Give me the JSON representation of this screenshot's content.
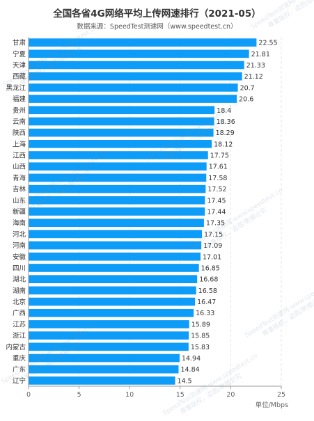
{
  "title": "全国各省4G网络平均上传网速排行（2021-05）",
  "subtitle": "数据来源：SpeedTest测速网（www.speedtest.cn）",
  "watermark": {
    "line1": "SpeedTest测速网-www.speedtest.cn",
    "line2": "尊重版权，盗图/数据必究"
  },
  "colors": {
    "bar": "#0d9cf7",
    "axis": "#999999",
    "grid": "#e6e6e6",
    "text": "#333333"
  },
  "chart_data": {
    "type": "bar",
    "orientation": "horizontal",
    "categories": [
      "甘肃",
      "宁夏",
      "天津",
      "西藏",
      "黑龙江",
      "福建",
      "贵州",
      "云南",
      "陕西",
      "上海",
      "江西",
      "山西",
      "青海",
      "吉林",
      "山东",
      "新疆",
      "海南",
      "河北",
      "河南",
      "安徽",
      "四川",
      "湖北",
      "湖南",
      "北京",
      "广西",
      "江苏",
      "浙江",
      "内蒙古",
      "重庆",
      "广东",
      "辽宁"
    ],
    "values": [
      22.55,
      21.81,
      21.33,
      21.12,
      20.7,
      20.6,
      18.4,
      18.36,
      18.29,
      18.12,
      17.75,
      17.61,
      17.58,
      17.52,
      17.45,
      17.44,
      17.35,
      17.15,
      17.09,
      17.01,
      16.85,
      16.68,
      16.58,
      16.47,
      16.33,
      15.89,
      15.85,
      15.83,
      14.94,
      14.84,
      14.5
    ],
    "value_labels": [
      "22.55",
      "21.81",
      "21.33",
      "21.12",
      "20.7",
      "20.6",
      "18.4",
      "18.36",
      "18.29",
      "18.12",
      "17.75",
      "17.61",
      "17.58",
      "17.52",
      "17.45",
      "17.44",
      "17.35",
      "17.15",
      "17.09",
      "17.01",
      "16.85",
      "16.68",
      "16.58",
      "16.47",
      "16.33",
      "15.89",
      "15.85",
      "15.83",
      "14.94",
      "14.84",
      "14.5"
    ],
    "xlim": [
      0,
      25
    ],
    "xticks": [
      0,
      5,
      10,
      15,
      20,
      25
    ],
    "unit_label": "单位/Mbps",
    "grid": "vertical dashed"
  }
}
